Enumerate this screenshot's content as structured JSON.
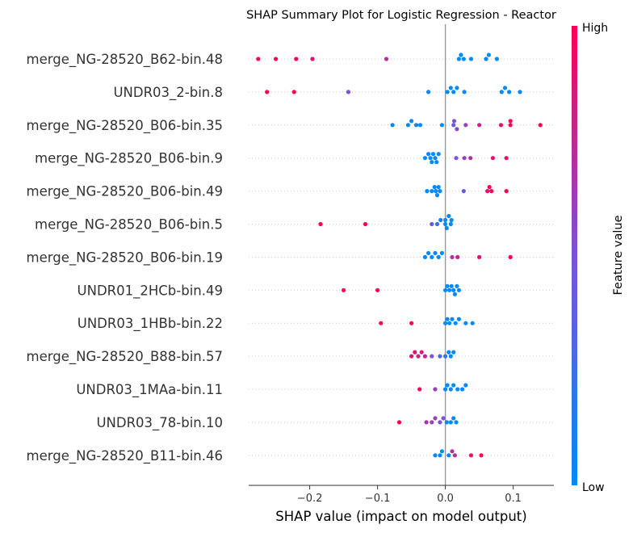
{
  "chart_data": {
    "type": "scatter",
    "subtype": "shap-summary-beeswarm",
    "title": "SHAP Summary Plot for Logistic Regression - Reactor",
    "xlabel": "SHAP value (impact on model output)",
    "ylabel": "",
    "xlim": [
      -0.29,
      0.16
    ],
    "xticks": [
      -0.2,
      -0.1,
      0.0,
      0.1
    ],
    "xtick_labels": [
      "−0.2",
      "−0.1",
      "0.0",
      "0.1"
    ],
    "zero_line": true,
    "grid": false,
    "colorbar": {
      "label": "Feature value",
      "high_label": "High",
      "low_label": "Low",
      "colors": [
        "#008afb",
        "#7c52d6",
        "#ff0052"
      ]
    },
    "features": [
      {
        "name": "merge_NG-28520_B62-bin.48",
        "points": [
          [
            -0.276,
            1
          ],
          [
            -0.25,
            1
          ],
          [
            -0.22,
            1
          ],
          [
            -0.196,
            0.9
          ],
          [
            -0.087,
            0.7
          ],
          [
            0.02,
            0
          ],
          [
            0.023,
            0
          ],
          [
            0.027,
            0
          ],
          [
            0.038,
            0
          ],
          [
            0.06,
            0
          ],
          [
            0.064,
            0
          ],
          [
            0.076,
            0
          ]
        ]
      },
      {
        "name": "UNDR03_2-bin.8",
        "points": [
          [
            -0.263,
            1
          ],
          [
            -0.223,
            1
          ],
          [
            -0.143,
            0.5
          ],
          [
            -0.025,
            0
          ],
          [
            0.003,
            0
          ],
          [
            0.008,
            0
          ],
          [
            0.012,
            0
          ],
          [
            0.017,
            0
          ],
          [
            0.028,
            0
          ],
          [
            0.083,
            0
          ],
          [
            0.088,
            0
          ],
          [
            0.094,
            0
          ],
          [
            0.11,
            0
          ]
        ]
      },
      {
        "name": "merge_NG-28520_B06-bin.35",
        "points": [
          [
            -0.078,
            0
          ],
          [
            -0.055,
            0
          ],
          [
            -0.05,
            0
          ],
          [
            -0.043,
            0
          ],
          [
            -0.037,
            0
          ],
          [
            -0.005,
            0
          ],
          [
            0.012,
            0.4
          ],
          [
            0.013,
            0.5
          ],
          [
            0.017,
            0.6
          ],
          [
            0.03,
            0.6
          ],
          [
            0.05,
            0.8
          ],
          [
            0.082,
            0.9
          ],
          [
            0.096,
            1
          ],
          [
            0.096,
            1
          ],
          [
            0.14,
            1
          ]
        ]
      },
      {
        "name": "merge_NG-28520_B06-bin.9",
        "points": [
          [
            -0.03,
            0
          ],
          [
            -0.025,
            0
          ],
          [
            -0.022,
            0
          ],
          [
            -0.02,
            0
          ],
          [
            -0.018,
            0
          ],
          [
            -0.015,
            0
          ],
          [
            -0.013,
            0
          ],
          [
            -0.01,
            0
          ],
          [
            0.016,
            0.5
          ],
          [
            0.028,
            0.6
          ],
          [
            0.037,
            0.7
          ],
          [
            0.07,
            0.9
          ],
          [
            0.09,
            0.9
          ]
        ]
      },
      {
        "name": "merge_NG-28520_B06-bin.49",
        "points": [
          [
            -0.027,
            0
          ],
          [
            -0.02,
            0
          ],
          [
            -0.016,
            0
          ],
          [
            -0.014,
            0
          ],
          [
            -0.012,
            0
          ],
          [
            -0.01,
            0
          ],
          [
            -0.008,
            0
          ],
          [
            0.027,
            0.4
          ],
          [
            0.062,
            0.9
          ],
          [
            0.065,
            1
          ],
          [
            0.068,
            1
          ],
          [
            0.09,
            1
          ]
        ]
      },
      {
        "name": "merge_NG-28520_B06-bin.5",
        "points": [
          [
            -0.184,
            1
          ],
          [
            -0.118,
            1
          ],
          [
            -0.02,
            0.4
          ],
          [
            -0.012,
            0.2
          ],
          [
            -0.007,
            0.1
          ],
          [
            0,
            0
          ],
          [
            0,
            0
          ],
          [
            0.002,
            0
          ],
          [
            0.005,
            0
          ],
          [
            0.008,
            0
          ],
          [
            0.009,
            0
          ]
        ]
      },
      {
        "name": "merge_NG-28520_B06-bin.19",
        "points": [
          [
            -0.03,
            0
          ],
          [
            -0.025,
            0
          ],
          [
            -0.02,
            0
          ],
          [
            -0.015,
            0
          ],
          [
            -0.01,
            0
          ],
          [
            -0.005,
            0
          ],
          [
            0.01,
            0.7
          ],
          [
            0.018,
            0.8
          ],
          [
            0.05,
            0.9
          ],
          [
            0.096,
            1
          ]
        ]
      },
      {
        "name": "UNDR01_2HCb-bin.49",
        "points": [
          [
            -0.15,
            1
          ],
          [
            -0.1,
            1
          ],
          [
            0,
            0
          ],
          [
            0.003,
            0
          ],
          [
            0.006,
            0
          ],
          [
            0.009,
            0
          ],
          [
            0.012,
            0
          ],
          [
            0.014,
            0
          ],
          [
            0.017,
            0
          ],
          [
            0.02,
            0
          ]
        ]
      },
      {
        "name": "UNDR03_1HBb-bin.22",
        "points": [
          [
            -0.095,
            1
          ],
          [
            -0.05,
            1
          ],
          [
            0,
            0
          ],
          [
            0.003,
            0
          ],
          [
            0.006,
            0
          ],
          [
            0.01,
            0
          ],
          [
            0.015,
            0
          ],
          [
            0.02,
            0
          ],
          [
            0.03,
            0
          ],
          [
            0.04,
            0
          ]
        ]
      },
      {
        "name": "merge_NG-28520_B88-bin.57",
        "points": [
          [
            -0.05,
            0.9
          ],
          [
            -0.045,
            0.9
          ],
          [
            -0.04,
            0.8
          ],
          [
            -0.035,
            0.8
          ],
          [
            -0.03,
            0.8
          ],
          [
            -0.02,
            0.5
          ],
          [
            -0.008,
            0.3
          ],
          [
            0,
            0.2
          ],
          [
            0.005,
            0
          ],
          [
            0.008,
            0
          ],
          [
            0.012,
            0
          ]
        ]
      },
      {
        "name": "UNDR03_1MAa-bin.11",
        "points": [
          [
            -0.038,
            1
          ],
          [
            -0.015,
            0.6
          ],
          [
            0,
            0
          ],
          [
            0.003,
            0
          ],
          [
            0.008,
            0
          ],
          [
            0.012,
            0
          ],
          [
            0.018,
            0
          ],
          [
            0.025,
            0
          ],
          [
            0.03,
            0
          ]
        ]
      },
      {
        "name": "UNDR03_78-bin.10",
        "points": [
          [
            -0.068,
            1
          ],
          [
            -0.028,
            0.7
          ],
          [
            -0.02,
            0.6
          ],
          [
            -0.015,
            0.6
          ],
          [
            -0.008,
            0.5
          ],
          [
            -0.003,
            0.5
          ],
          [
            0.002,
            0
          ],
          [
            0.008,
            0
          ],
          [
            0.012,
            0
          ],
          [
            0.016,
            0
          ]
        ]
      },
      {
        "name": "merge_NG-28520_B11-bin.46",
        "points": [
          [
            -0.015,
            0
          ],
          [
            -0.008,
            0
          ],
          [
            -0.005,
            0
          ],
          [
            0.005,
            0
          ],
          [
            0.01,
            0.7
          ],
          [
            0.014,
            0.7
          ],
          [
            0.038,
            0.9
          ],
          [
            0.053,
            1
          ]
        ]
      }
    ]
  }
}
